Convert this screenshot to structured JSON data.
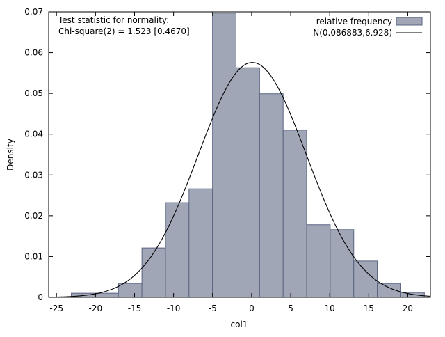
{
  "chart_data": {
    "type": "bar",
    "xlabel": "col1",
    "ylabel": "Density",
    "xlim": [
      -26,
      22.9
    ],
    "ylim": [
      0,
      0.07
    ],
    "x_ticks": [
      -25,
      -20,
      -15,
      -10,
      -5,
      0,
      5,
      10,
      15,
      20
    ],
    "y_ticks": [
      0,
      0.01,
      0.02,
      0.03,
      0.04,
      0.05,
      0.06,
      0.07
    ],
    "y_tick_labels": [
      "0",
      "0.01",
      "0.02",
      "0.03",
      "0.04",
      "0.05",
      "0.06",
      "0.07"
    ],
    "bin_start": -23.1,
    "bin_width": 3.015,
    "values": [
      0.001,
      0.001,
      0.0034,
      0.0121,
      0.0232,
      0.0266,
      0.0697,
      0.0563,
      0.0499,
      0.041,
      0.0178,
      0.0166,
      0.0089,
      0.0034,
      0.0012
    ],
    "normal_curve": {
      "mean": 0.086883,
      "sd": 6.928
    },
    "legend": {
      "placement": "top-right",
      "entries": [
        "relative frequency",
        "N(0.086883,6.928)"
      ]
    },
    "annotation": [
      "Test statistic for normality:",
      "Chi-square(2) = 1.523 [0.4670]"
    ],
    "grid": false,
    "colors": {
      "bar_fill": "#a0a6b6",
      "bar_stroke": "#5a6482",
      "curve": "#000000"
    }
  }
}
